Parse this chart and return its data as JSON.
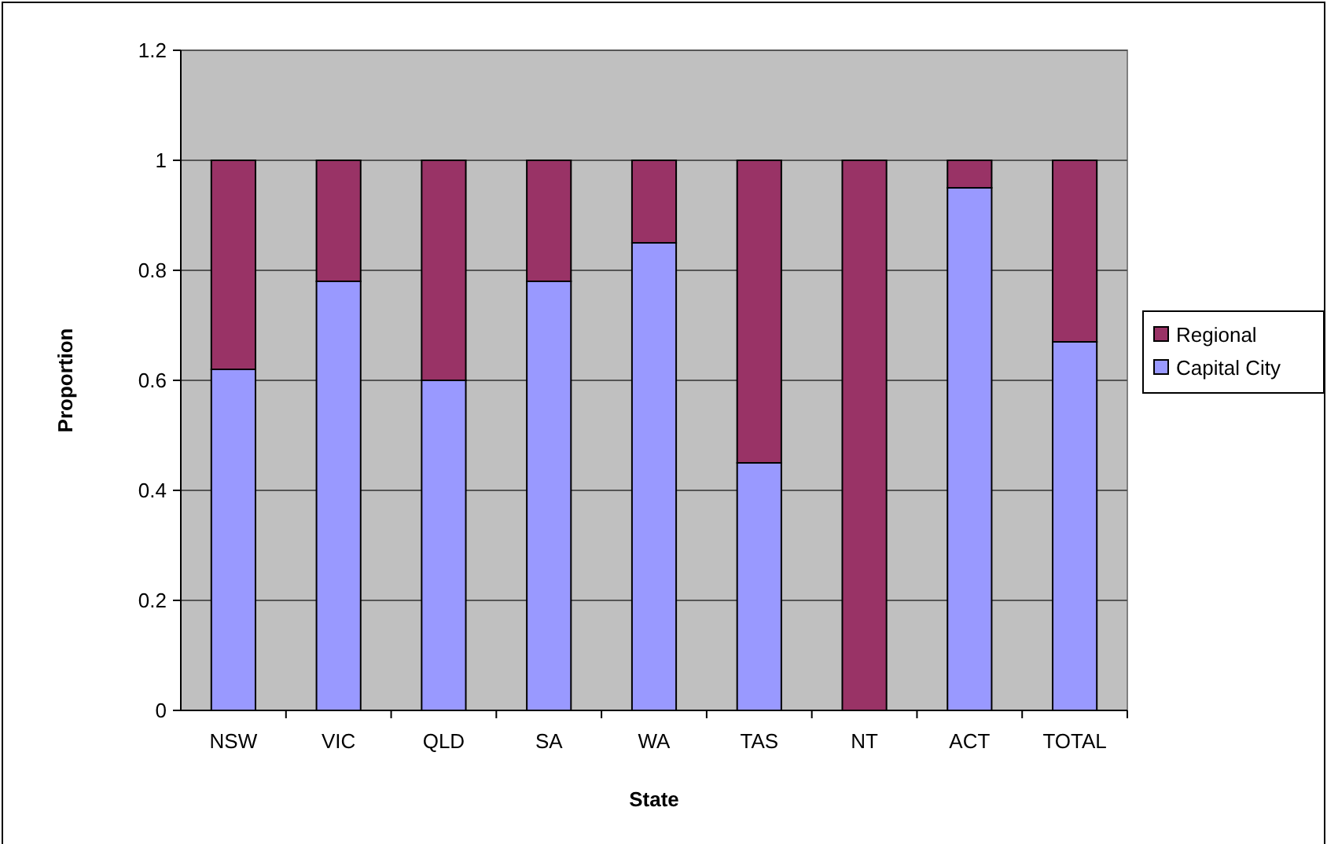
{
  "chart_data": {
    "type": "bar",
    "stacked": true,
    "xlabel": "State",
    "ylabel": "Proportion",
    "categories": [
      "NSW",
      "VIC",
      "QLD",
      "SA",
      "WA",
      "TAS",
      "NT",
      "ACT",
      "TOTAL"
    ],
    "series": [
      {
        "name": "Capital City",
        "color": "#9999ff",
        "values": [
          0.62,
          0.78,
          0.6,
          0.78,
          0.85,
          0.45,
          0,
          0.95,
          0.67
        ]
      },
      {
        "name": "Regional",
        "color": "#993366",
        "values": [
          0.38,
          0.22,
          0.4,
          0.22,
          0.15,
          0.55,
          1,
          0.05,
          0.33
        ]
      }
    ],
    "ylim": [
      0,
      1.2
    ],
    "yticks": [
      0,
      0.2,
      0.4,
      0.6,
      0.8,
      1,
      1.2
    ],
    "grid": "y",
    "legend": "right"
  }
}
